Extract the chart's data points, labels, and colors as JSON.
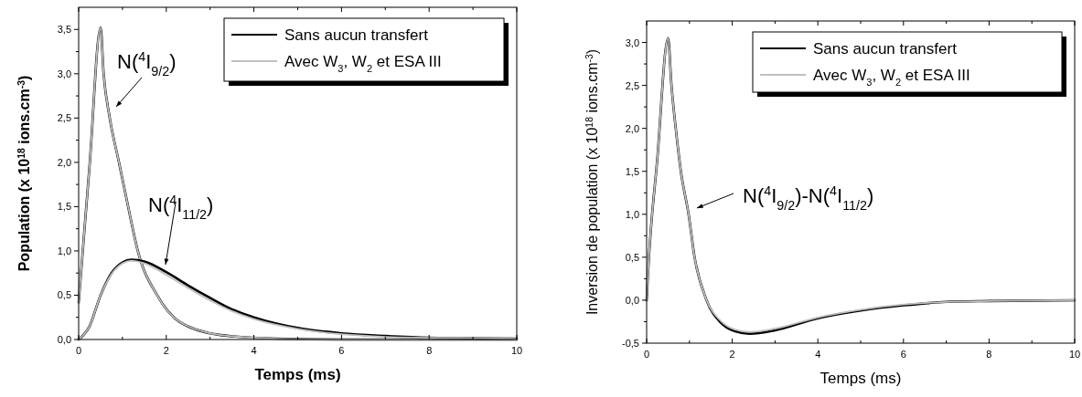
{
  "chart_data": [
    {
      "type": "line",
      "xlabel": "Temps (ms)",
      "ylabel": "Population (x 10$^{18}$ ions.cm$^{-3}$)",
      "xlim": [
        0,
        10
      ],
      "xticks": [
        0,
        {
          "value": 1,
          "label": null
        },
        2,
        {
          "value": 3,
          "label": null
        },
        4,
        {
          "value": 5,
          "label": null
        },
        6,
        {
          "value": 7,
          "label": null
        },
        8,
        {
          "value": 9,
          "label": null
        },
        10
      ],
      "ylim": [
        0,
        3.75
      ],
      "yticks": [
        {
          "value": 0,
          "label": "0,0"
        },
        {
          "value": 0.25,
          "label": null
        },
        {
          "value": 0.5,
          "label": "0,5"
        },
        {
          "value": 0.75,
          "label": null
        },
        {
          "value": 1,
          "label": "1,0"
        },
        {
          "value": 1.25,
          "label": null
        },
        {
          "value": 1.5,
          "label": "1,5"
        },
        {
          "value": 1.75,
          "label": null
        },
        {
          "value": 2,
          "label": "2,0"
        },
        {
          "value": 2.25,
          "label": null
        },
        {
          "value": 2.5,
          "label": "2,5"
        },
        {
          "value": 2.75,
          "label": null
        },
        {
          "value": 3,
          "label": "3,0"
        },
        {
          "value": 3.25,
          "label": null
        },
        {
          "value": 3.5,
          "label": "3,5"
        }
      ],
      "grid": false,
      "legend": "top right",
      "line_style": "solid",
      "marker": "none",
      "series": [
        {
          "name": "Sans aucun transfert",
          "color": "#000000",
          "x": [
            0,
            0.25,
            0.5,
            0.57,
            0.71,
            0.92,
            1.13,
            1.35,
            1.79,
            2.3,
            3.24,
            4.5,
            6,
            8,
            10
          ],
          "values": [
            0.42,
            1.97,
            3.52,
            3.0,
            2.5,
            2.0,
            1.5,
            1.0,
            0.5,
            0.2,
            0.05,
            0.01,
            0,
            0,
            0
          ]
        },
        {
          "name": "Avec W$_{3}$, W$_{2}$ et ESA III",
          "color": "#c0c0c0",
          "x": [
            0,
            0.25,
            0.5,
            0.57,
            0.71,
            0.92,
            1.13,
            1.35,
            1.79,
            2.3,
            3.24,
            4.5,
            6,
            8,
            10
          ],
          "values": [
            0.42,
            1.97,
            3.52,
            3.0,
            2.5,
            2.0,
            1.5,
            1.0,
            0.5,
            0.2,
            0.05,
            0.01,
            0,
            0,
            0
          ]
        },
        {
          "color": "#000000",
          "x": [
            0,
            0.25,
            0.5,
            0.75,
            1.0,
            1.2,
            1.5,
            2,
            2.5,
            3,
            3.5,
            4,
            5,
            6,
            7,
            8,
            10
          ],
          "values": [
            0,
            0.15,
            0.5,
            0.75,
            0.87,
            0.9,
            0.88,
            0.76,
            0.61,
            0.47,
            0.34,
            0.25,
            0.13,
            0.07,
            0.04,
            0.02,
            0.01
          ]
        },
        {
          "color": "#c0c0c0",
          "x": [
            0,
            0.25,
            0.5,
            0.75,
            1.0,
            1.2,
            1.5,
            2,
            2.5,
            3,
            3.5,
            4,
            5,
            6,
            7,
            8,
            10
          ],
          "values": [
            0,
            0.15,
            0.5,
            0.74,
            0.86,
            0.89,
            0.86,
            0.73,
            0.58,
            0.44,
            0.32,
            0.23,
            0.12,
            0.06,
            0.03,
            0.02,
            0.01
          ]
        }
      ],
      "annotations": [
        "N($^{4}$I$_{9/2}$)",
        "N($^{4}$I$_{11/2}$)"
      ]
    },
    {
      "type": "line",
      "xlabel": "Temps (ms)",
      "ylabel": "Inversion de population (x 10$^{18}$ ions.cm$^{-3}$)",
      "xlim": [
        0,
        10
      ],
      "xticks": [
        0,
        {
          "value": 1,
          "label": null
        },
        2,
        {
          "value": 3,
          "label": null
        },
        4,
        {
          "value": 5,
          "label": null
        },
        6,
        {
          "value": 7,
          "label": null
        },
        8,
        {
          "value": 9,
          "label": null
        },
        10
      ],
      "ylim": [
        -0.5,
        3.25
      ],
      "yticks": [
        {
          "value": -0.5,
          "label": "-0,5"
        },
        {
          "value": -0.25,
          "label": null
        },
        {
          "value": 0,
          "label": "0,0"
        },
        {
          "value": 0.25,
          "label": null
        },
        {
          "value": 0.5,
          "label": "0,5"
        },
        {
          "value": 0.75,
          "label": null
        },
        {
          "value": 1,
          "label": "1,0"
        },
        {
          "value": 1.25,
          "label": null
        },
        {
          "value": 1.5,
          "label": "1,5"
        },
        {
          "value": 1.75,
          "label": null
        },
        {
          "value": 2,
          "label": "2,0"
        },
        {
          "value": 2.25,
          "label": null
        },
        {
          "value": 2.5,
          "label": "2,5"
        },
        {
          "value": 2.75,
          "label": null
        },
        {
          "value": 3,
          "label": "3,0"
        }
      ],
      "grid": false,
      "legend": "top right",
      "line_style": "solid",
      "marker": "none",
      "series": [
        {
          "name": "Sans aucun transfert",
          "color": "#000000",
          "x": [
            0,
            0.03,
            0.25,
            0.5,
            0.58,
            0.68,
            0.8,
            0.98,
            1.12,
            1.4,
            1.73,
            2.05,
            2.4,
            3,
            4,
            5,
            6,
            7,
            8,
            10
          ],
          "values": [
            0,
            0.3,
            1.65,
            3.05,
            2.5,
            2.0,
            1.5,
            1.0,
            0.5,
            0,
            -0.26,
            -0.36,
            -0.39,
            -0.35,
            -0.21,
            -0.12,
            -0.06,
            -0.02,
            -0.01,
            0
          ]
        },
        {
          "name": "Avec W$_{3}$, W$_{2}$ et ESA III",
          "color": "#c0c0c0",
          "x": [
            0,
            0.03,
            0.25,
            0.5,
            0.58,
            0.68,
            0.8,
            0.98,
            1.12,
            1.4,
            1.73,
            2.05,
            2.4,
            3,
            4,
            5,
            6,
            7,
            8,
            10
          ],
          "values": [
            0,
            0.3,
            1.65,
            3.05,
            2.5,
            2.0,
            1.5,
            1.0,
            0.5,
            0,
            -0.24,
            -0.34,
            -0.37,
            -0.33,
            -0.2,
            -0.11,
            -0.05,
            -0.02,
            -0.01,
            0
          ]
        }
      ],
      "annotations": [
        "N($^{4}$I$_{9/2}$)-N($^{4}$I$_{11/2}$)"
      ]
    }
  ]
}
